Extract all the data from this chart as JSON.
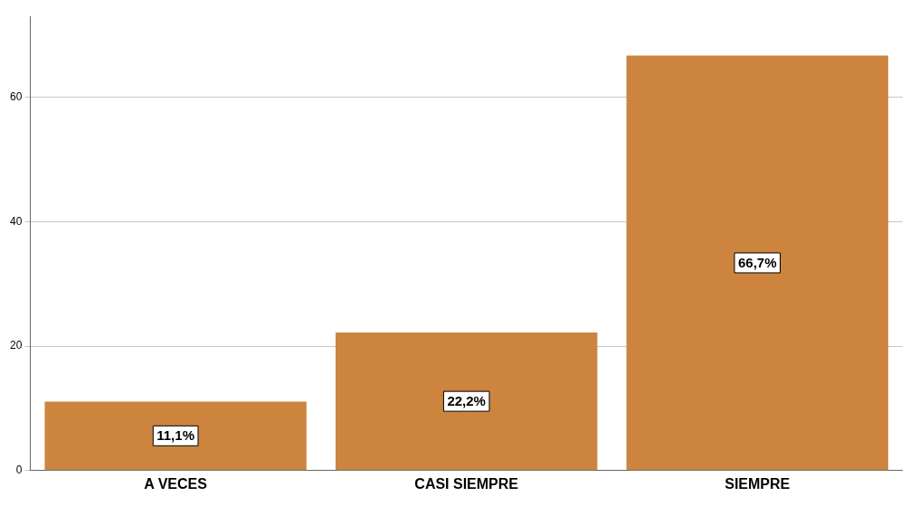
{
  "chart_data": {
    "type": "bar",
    "categories": [
      "A VECES",
      "CASI SIEMPRE",
      "SIEMPRE"
    ],
    "values": [
      11.1,
      22.2,
      66.7
    ],
    "value_labels": [
      "11,1%",
      "22,2%",
      "66,7%"
    ],
    "color": "#cc843f",
    "ylim": [
      0,
      73
    ],
    "yticks": [
      0,
      20,
      40,
      60
    ],
    "grid": "y",
    "legend": false
  }
}
